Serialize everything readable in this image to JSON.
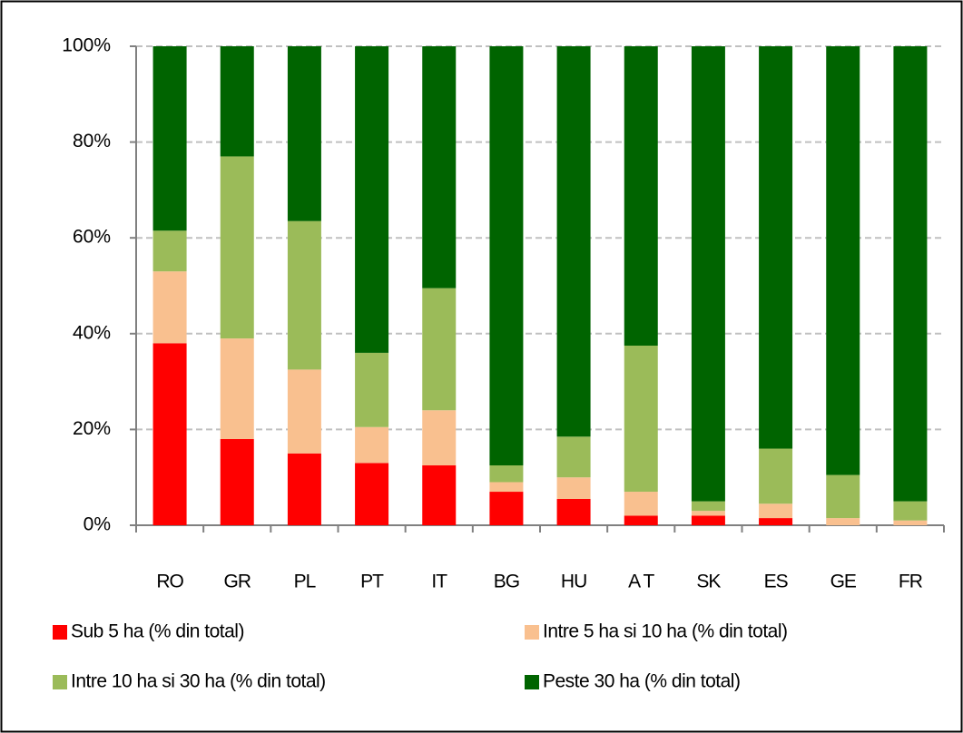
{
  "chart_data": {
    "type": "stacked_bar",
    "categories": [
      "RO",
      "GR",
      "PL",
      "PT",
      "IT",
      "BG",
      "HU",
      "A T",
      "SK",
      "ES",
      "GE",
      "FR"
    ],
    "series": [
      {
        "name": "Sub 5 ha (% din total)",
        "color": "#ff0000",
        "values": [
          38,
          18,
          15,
          13,
          12.5,
          7,
          5.5,
          2,
          2,
          1.5,
          0,
          0
        ]
      },
      {
        "name": "Intre 5 ha si 10 ha (% din total)",
        "color": "#f9c08f",
        "values": [
          15,
          21,
          17.5,
          7.5,
          11.5,
          2,
          4.5,
          5,
          1,
          3,
          1.5,
          1
        ]
      },
      {
        "name": "Intre 10 ha si 30 ha (% din total)",
        "color": "#9bbb59",
        "values": [
          8.5,
          38,
          31,
          15.5,
          25.5,
          3.5,
          8.5,
          30.5,
          2,
          11.5,
          9,
          4
        ]
      },
      {
        "name": "Peste 30 ha (% din total)",
        "color": "#006400",
        "values": [
          38.5,
          23,
          36.5,
          64,
          50.5,
          87.5,
          81.5,
          62.5,
          95,
          84,
          89.5,
          95
        ]
      }
    ],
    "ylim": [
      0,
      100
    ],
    "yticks": [
      {
        "value": 0,
        "label": "0%"
      },
      {
        "value": 20,
        "label": "20%"
      },
      {
        "value": 40,
        "label": "40%"
      },
      {
        "value": 60,
        "label": "60%"
      },
      {
        "value": 80,
        "label": "80%"
      },
      {
        "value": 100,
        "label": "100%"
      }
    ],
    "grid": true
  }
}
